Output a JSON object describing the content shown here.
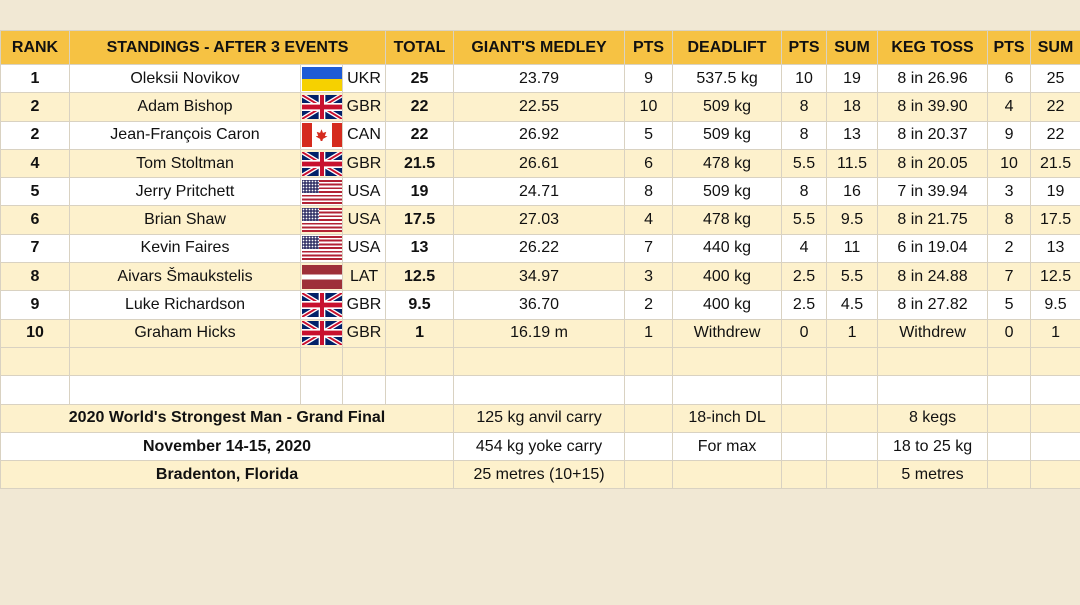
{
  "headers": {
    "rank": "RANK",
    "standings": "STANDINGS - AFTER 3 EVENTS",
    "total": "TOTAL",
    "giants_medley": "GIANT'S MEDLEY",
    "pts1": "PTS",
    "deadlift": "DEADLIFT",
    "pts2": "PTS",
    "sum1": "SUM",
    "keg_toss": "KEG TOSS",
    "pts3": "PTS",
    "sum2": "SUM"
  },
  "rows": [
    {
      "rank": "1",
      "name": "Oleksii Novikov",
      "flag": "ukr",
      "country": "UKR",
      "total": "25",
      "medley": "23.79",
      "pts1": "9",
      "deadlift": "537.5 kg",
      "pts2": "10",
      "sum1": "19",
      "keg": "8 in 26.96",
      "pts3": "6",
      "sum2": "25"
    },
    {
      "rank": "2",
      "name": "Adam Bishop",
      "flag": "gbr",
      "country": "GBR",
      "total": "22",
      "medley": "22.55",
      "pts1": "10",
      "deadlift": "509 kg",
      "pts2": "8",
      "sum1": "18",
      "keg": "8 in 39.90",
      "pts3": "4",
      "sum2": "22"
    },
    {
      "rank": "2",
      "name": "Jean-François Caron",
      "flag": "can",
      "country": "CAN",
      "total": "22",
      "medley": "26.92",
      "pts1": "5",
      "deadlift": "509 kg",
      "pts2": "8",
      "sum1": "13",
      "keg": "8 in 20.37",
      "pts3": "9",
      "sum2": "22"
    },
    {
      "rank": "4",
      "name": "Tom Stoltman",
      "flag": "gbr",
      "country": "GBR",
      "total": "21.5",
      "medley": "26.61",
      "pts1": "6",
      "deadlift": "478 kg",
      "pts2": "5.5",
      "sum1": "11.5",
      "keg": "8 in 20.05",
      "pts3": "10",
      "sum2": "21.5"
    },
    {
      "rank": "5",
      "name": "Jerry Pritchett",
      "flag": "usa",
      "country": "USA",
      "total": "19",
      "medley": "24.71",
      "pts1": "8",
      "deadlift": "509 kg",
      "pts2": "8",
      "sum1": "16",
      "keg": "7 in 39.94",
      "pts3": "3",
      "sum2": "19"
    },
    {
      "rank": "6",
      "name": "Brian Shaw",
      "flag": "usa",
      "country": "USA",
      "total": "17.5",
      "medley": "27.03",
      "pts1": "4",
      "deadlift": "478 kg",
      "pts2": "5.5",
      "sum1": "9.5",
      "keg": "8 in 21.75",
      "pts3": "8",
      "sum2": "17.5"
    },
    {
      "rank": "7",
      "name": "Kevin Faires",
      "flag": "usa",
      "country": "USA",
      "total": "13",
      "medley": "26.22",
      "pts1": "7",
      "deadlift": "440 kg",
      "pts2": "4",
      "sum1": "11",
      "keg": "6 in 19.04",
      "pts3": "2",
      "sum2": "13"
    },
    {
      "rank": "8",
      "name": "Aivars Šmaukstelis",
      "flag": "lat",
      "country": "LAT",
      "total": "12.5",
      "medley": "34.97",
      "pts1": "3",
      "deadlift": "400 kg",
      "pts2": "2.5",
      "sum1": "5.5",
      "keg": "8 in 24.88",
      "pts3": "7",
      "sum2": "12.5"
    },
    {
      "rank": "9",
      "name": "Luke Richardson",
      "flag": "gbr",
      "country": "GBR",
      "total": "9.5",
      "medley": "36.70",
      "pts1": "2",
      "deadlift": "400 kg",
      "pts2": "2.5",
      "sum1": "4.5",
      "keg": "8 in 27.82",
      "pts3": "5",
      "sum2": "9.5"
    },
    {
      "rank": "10",
      "name": "Graham Hicks",
      "flag": "gbr",
      "country": "GBR",
      "total": "1",
      "medley": "16.19 m",
      "pts1": "1",
      "deadlift": "Withdrew",
      "pts2": "0",
      "sum1": "1",
      "keg": "Withdrew",
      "pts3": "0",
      "sum2": "1"
    }
  ],
  "info": {
    "event_title": "2020 World's Strongest Man - Grand Final",
    "dates": "November 14-15, 2020",
    "location": "Bradenton, Florida",
    "medley_details": [
      "125 kg anvil carry",
      "454 kg yoke carry",
      "25 metres (10+15)"
    ],
    "deadlift_details": [
      "18-inch DL",
      "For max"
    ],
    "keg_details": [
      "8 kegs",
      "18 to 25 kg",
      "5 metres"
    ]
  }
}
